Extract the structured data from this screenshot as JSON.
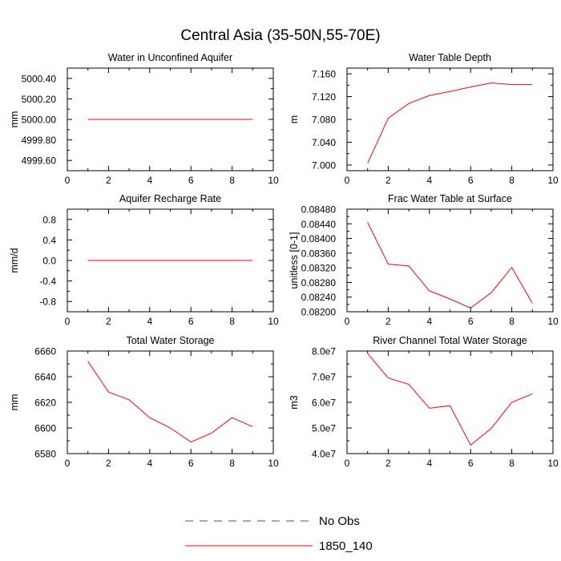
{
  "title": "Central Asia (35-50N,55-70E)",
  "legend": [
    {
      "label": "No Obs",
      "color": "#4a4ab8",
      "style": "dashed"
    },
    {
      "label": "1850_140",
      "color": "#ff0000",
      "style": "solid"
    }
  ],
  "chart_data": [
    {
      "type": "line",
      "title": "Water in Unconfined Aquifer",
      "ylabel": "mm",
      "xlim": [
        0,
        10
      ],
      "ylim": [
        4999.5,
        5000.5
      ],
      "xticks": [
        "0",
        "2",
        "4",
        "6",
        "8",
        "10"
      ],
      "yticks": [
        {
          "v": 4999.6,
          "label": "4999.60"
        },
        {
          "v": 4999.8,
          "label": "4999.80"
        },
        {
          "v": 5000.0,
          "label": "5000.00"
        },
        {
          "v": 5000.2,
          "label": "5000.20"
        },
        {
          "v": 5000.4,
          "label": "5000.40"
        }
      ],
      "series": [
        {
          "name": "1850_140",
          "color": "#ff0000",
          "x": [
            1,
            2,
            3,
            4,
            5,
            6,
            7,
            8,
            9
          ],
          "y": [
            5000.0,
            5000.0,
            5000.0,
            5000.0,
            5000.0,
            5000.0,
            5000.0,
            5000.0,
            5000.0
          ]
        }
      ]
    },
    {
      "type": "line",
      "title": "Water Table Depth",
      "ylabel": "m",
      "xlim": [
        0,
        10
      ],
      "ylim": [
        6.99,
        7.17
      ],
      "xticks": [
        "0",
        "2",
        "4",
        "6",
        "8",
        "10"
      ],
      "yticks": [
        {
          "v": 7.0,
          "label": "7.000"
        },
        {
          "v": 7.04,
          "label": "7.040"
        },
        {
          "v": 7.08,
          "label": "7.080"
        },
        {
          "v": 7.12,
          "label": "7.120"
        },
        {
          "v": 7.16,
          "label": "7.160"
        }
      ],
      "series": [
        {
          "name": "1850_140",
          "color": "#ff0000",
          "x": [
            1,
            2,
            3,
            4,
            5,
            6,
            7,
            8,
            9
          ],
          "y": [
            7.003,
            7.082,
            7.108,
            7.122,
            7.129,
            7.137,
            7.144,
            7.141,
            7.141
          ]
        }
      ]
    },
    {
      "type": "line",
      "title": "Aquifer Recharge Rate",
      "ylabel": "mm/d",
      "xlim": [
        0,
        10
      ],
      "ylim": [
        -1.0,
        1.0
      ],
      "xticks": [
        "0",
        "2",
        "4",
        "6",
        "8",
        "10"
      ],
      "yticks": [
        {
          "v": -0.8,
          "label": "-0.8"
        },
        {
          "v": -0.4,
          "label": "-0.4"
        },
        {
          "v": 0.0,
          "label": "0.0"
        },
        {
          "v": 0.4,
          "label": "0.4"
        },
        {
          "v": 0.8,
          "label": "0.8"
        }
      ],
      "series": [
        {
          "name": "1850_140",
          "color": "#ff0000",
          "x": [
            1,
            2,
            3,
            4,
            5,
            6,
            7,
            8,
            9
          ],
          "y": [
            0,
            0,
            0,
            0,
            0,
            0,
            0,
            0,
            0
          ]
        }
      ]
    },
    {
      "type": "line",
      "title": "Frac Water Table at Surface",
      "ylabel": "unitless [0-1]",
      "xlim": [
        0,
        10
      ],
      "ylim": [
        0.082,
        0.0848
      ],
      "xticks": [
        "0",
        "2",
        "4",
        "6",
        "8",
        "10"
      ],
      "yticks": [
        {
          "v": 0.082,
          "label": "0.08200"
        },
        {
          "v": 0.0824,
          "label": "0.08240"
        },
        {
          "v": 0.0828,
          "label": "0.08280"
        },
        {
          "v": 0.0832,
          "label": "0.08320"
        },
        {
          "v": 0.0836,
          "label": "0.08360"
        },
        {
          "v": 0.084,
          "label": "0.08400"
        },
        {
          "v": 0.0844,
          "label": "0.08440"
        },
        {
          "v": 0.0848,
          "label": "0.08480"
        }
      ],
      "series": [
        {
          "name": "1850_140",
          "color": "#ff0000",
          "x": [
            1,
            2,
            3,
            4,
            5,
            6,
            7,
            8,
            9
          ],
          "y": [
            0.08444,
            0.0833,
            0.08325,
            0.08257,
            0.08235,
            0.0821,
            0.08252,
            0.08321,
            0.08223
          ]
        }
      ]
    },
    {
      "type": "line",
      "title": "Total Water Storage",
      "ylabel": "mm",
      "xlim": [
        0,
        10
      ],
      "ylim": [
        6580,
        6660
      ],
      "xticks": [
        "0",
        "2",
        "4",
        "6",
        "8",
        "10"
      ],
      "yticks": [
        {
          "v": 6580,
          "label": "6580"
        },
        {
          "v": 6600,
          "label": "6600"
        },
        {
          "v": 6620,
          "label": "6620"
        },
        {
          "v": 6640,
          "label": "6640"
        },
        {
          "v": 6660,
          "label": "6660"
        }
      ],
      "series": [
        {
          "name": "1850_140",
          "color": "#ff0000",
          "x": [
            1,
            2,
            3,
            4,
            5,
            6,
            7,
            8,
            9
          ],
          "y": [
            6652,
            6628,
            6622,
            6608,
            6600,
            6589,
            6596,
            6608,
            6601
          ]
        }
      ]
    },
    {
      "type": "line",
      "title": "River Channel Total Water Storage",
      "ylabel": "m3",
      "xlim": [
        0,
        10
      ],
      "ylim": [
        40000000,
        80000000
      ],
      "xticks": [
        "0",
        "2",
        "4",
        "6",
        "8",
        "10"
      ],
      "yticks": [
        {
          "v": 40000000,
          "label": "4.0e7"
        },
        {
          "v": 50000000,
          "label": "5.0e7"
        },
        {
          "v": 60000000,
          "label": "6.0e7"
        },
        {
          "v": 70000000,
          "label": "7.0e7"
        },
        {
          "v": 80000000,
          "label": "8.0e7"
        }
      ],
      "series": [
        {
          "name": "1850_140",
          "color": "#ff0000",
          "x": [
            1,
            2,
            3,
            4,
            5,
            6,
            7,
            8,
            9
          ],
          "y": [
            79000000,
            69500000,
            67000000,
            57700000,
            58700000,
            43300000,
            49800000,
            60000000,
            63300000
          ]
        }
      ]
    }
  ]
}
